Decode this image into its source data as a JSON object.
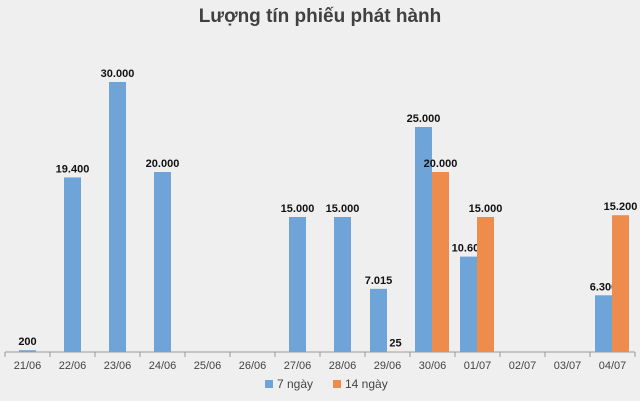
{
  "chart_data": {
    "type": "bar",
    "title": "Lượng tín phiếu phát hành",
    "categories": [
      "21/06",
      "22/06",
      "23/06",
      "24/06",
      "25/06",
      "26/06",
      "27/06",
      "28/06",
      "29/06",
      "30/06",
      "01/07",
      "02/07",
      "03/07",
      "04/07"
    ],
    "series": [
      {
        "name": "7 ngày",
        "color": "#6fa4d8",
        "values": [
          200,
          19400,
          30000,
          20000,
          null,
          null,
          15000,
          15000,
          7015,
          25000,
          10600,
          null,
          null,
          6300
        ],
        "labels": [
          "200",
          "19.400",
          "30.000",
          "20.000",
          "",
          "",
          "15.000",
          "15.000",
          "7.015",
          "25.000",
          "10.600",
          "",
          "",
          "6.300"
        ]
      },
      {
        "name": "14 ngày",
        "color": "#ee8c4d",
        "values": [
          null,
          null,
          null,
          null,
          null,
          null,
          null,
          null,
          25,
          20000,
          15000,
          null,
          null,
          15200
        ],
        "labels": [
          "",
          "",
          "",
          "",
          "",
          "",
          "",
          "",
          "25",
          "20.000",
          "15.000",
          "",
          "",
          "15.200"
        ]
      }
    ],
    "ylim": [
      0,
      30000
    ],
    "grid": false,
    "legend": "bottom"
  }
}
